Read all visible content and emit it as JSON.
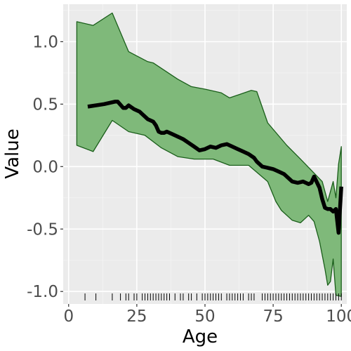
{
  "chart_data": {
    "type": "area",
    "title": "",
    "xlabel": "Age",
    "ylabel": "Value",
    "xlim": [
      -2,
      102
    ],
    "ylim": [
      -1.1,
      1.3
    ],
    "x_ticks": [
      0,
      25,
      50,
      75,
      100
    ],
    "x_tick_labels": [
      "0",
      "25",
      "50",
      "75",
      "100"
    ],
    "y_ticks": [
      -1.0,
      -0.5,
      0.0,
      0.5,
      1.0
    ],
    "y_tick_labels": [
      "-1.0",
      "-0.5",
      "0.0",
      "0.5",
      "1.0"
    ],
    "grid": true,
    "band": {
      "upper": [
        [
          3,
          1.16
        ],
        [
          9,
          1.13
        ],
        [
          16,
          1.23
        ],
        [
          22,
          0.92
        ],
        [
          29,
          0.84
        ],
        [
          31,
          0.83
        ],
        [
          40,
          0.7
        ],
        [
          45,
          0.64
        ],
        [
          50,
          0.62
        ],
        [
          56,
          0.59
        ],
        [
          59,
          0.55
        ],
        [
          63,
          0.58
        ],
        [
          67,
          0.61
        ],
        [
          69,
          0.6
        ],
        [
          73,
          0.35
        ],
        [
          80,
          0.17
        ],
        [
          85,
          0.06
        ],
        [
          89,
          -0.03
        ],
        [
          93,
          -0.12
        ],
        [
          95,
          -0.28
        ],
        [
          97,
          -0.12
        ],
        [
          98,
          -0.25
        ],
        [
          99,
          0.02
        ],
        [
          100,
          0.16
        ]
      ],
      "lower": [
        [
          100,
          -1.04
        ],
        [
          98,
          -1.03
        ],
        [
          97,
          -0.74
        ],
        [
          96,
          -0.92
        ],
        [
          95,
          -0.95
        ],
        [
          94,
          -0.82
        ],
        [
          92,
          -0.6
        ],
        [
          90,
          -0.44
        ],
        [
          88,
          -0.39
        ],
        [
          85,
          -0.45
        ],
        [
          82,
          -0.43
        ],
        [
          78,
          -0.35
        ],
        [
          76,
          -0.28
        ],
        [
          73,
          -0.12
        ],
        [
          66,
          0.01
        ],
        [
          59,
          0.01
        ],
        [
          53,
          0.06
        ],
        [
          46,
          0.06
        ],
        [
          40,
          0.08
        ],
        [
          34,
          0.15
        ],
        [
          28,
          0.25
        ],
        [
          22,
          0.28
        ],
        [
          16,
          0.37
        ],
        [
          9,
          0.12
        ],
        [
          3,
          0.17
        ]
      ]
    },
    "band_fill": "#7fb97a",
    "band_stroke": "#1a5e1a",
    "line": {
      "x": [
        7,
        13,
        17,
        18,
        20,
        21,
        22,
        24,
        26,
        27,
        29,
        31,
        32,
        33,
        34,
        35,
        36,
        38,
        40,
        42,
        44,
        46,
        48,
        50,
        52,
        54,
        56,
        58,
        60,
        62,
        64,
        66,
        68,
        69,
        71,
        73,
        75,
        77,
        79,
        80,
        82,
        84,
        86,
        88,
        89,
        90,
        92,
        93,
        94,
        95,
        96,
        97,
        98,
        99,
        100
      ],
      "y": [
        0.48,
        0.5,
        0.52,
        0.52,
        0.47,
        0.47,
        0.49,
        0.46,
        0.44,
        0.42,
        0.38,
        0.36,
        0.33,
        0.28,
        0.27,
        0.27,
        0.28,
        0.26,
        0.24,
        0.22,
        0.19,
        0.16,
        0.13,
        0.14,
        0.16,
        0.15,
        0.17,
        0.18,
        0.16,
        0.14,
        0.12,
        0.1,
        0.07,
        0.04,
        0.0,
        -0.01,
        -0.02,
        -0.04,
        -0.06,
        -0.08,
        -0.12,
        -0.13,
        -0.12,
        -0.14,
        -0.13,
        -0.08,
        -0.17,
        -0.26,
        -0.33,
        -0.34,
        -0.34,
        -0.36,
        -0.34,
        -0.53,
        -0.16
      ]
    },
    "line_color": "#000000",
    "rug_x": [
      6,
      10,
      16,
      19,
      21,
      22,
      24,
      25,
      27,
      28,
      29,
      30,
      31,
      32,
      33,
      34,
      35,
      36,
      37,
      39,
      41,
      42,
      44,
      45,
      47,
      49,
      50,
      51,
      52,
      53,
      54,
      55,
      56,
      58,
      59,
      60,
      61,
      62,
      63,
      64,
      66,
      67,
      68,
      71,
      72,
      73,
      74,
      75,
      76,
      77,
      78,
      79,
      80,
      81,
      82,
      83,
      84,
      85,
      86,
      87,
      88,
      89,
      90,
      91,
      92,
      93,
      94,
      95,
      96,
      97,
      98,
      99,
      100
    ]
  }
}
